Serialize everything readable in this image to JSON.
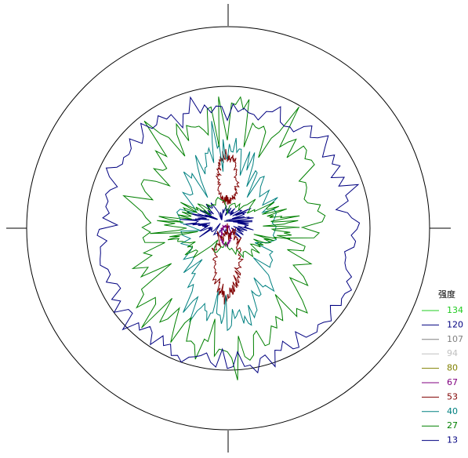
{
  "chart_data": {
    "type": "contour",
    "legend_title": "强度",
    "levels": [
      134,
      120,
      107,
      94,
      80,
      67,
      53,
      40,
      27,
      13
    ],
    "colors": [
      "#22cc22",
      "#000080",
      "#808080",
      "#c0c0c0",
      "#808000",
      "#800080",
      "#800000",
      "#008080",
      "#008000",
      "#000080"
    ]
  }
}
